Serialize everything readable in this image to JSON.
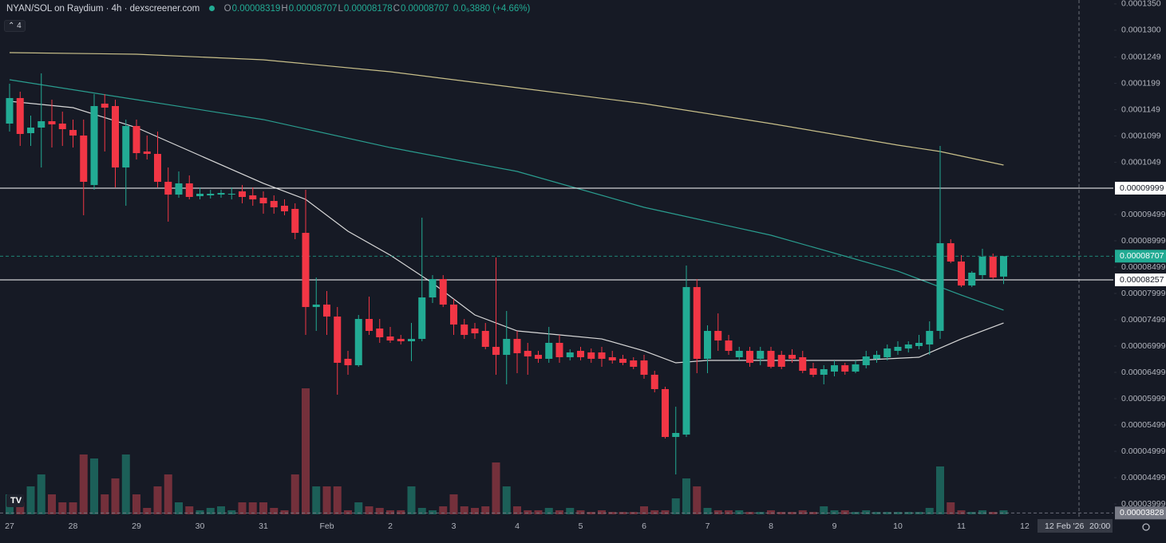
{
  "chart_data": {
    "type": "candlestick",
    "title": "NYAN/SOL on Raydium · 4h · dexscreener.com",
    "ohlc_legend": [
      {
        "label": "O",
        "value": 8.319e-05
      },
      {
        "label": "H",
        "value": 8.707e-05
      },
      {
        "label": "L",
        "value": 8.178e-05
      },
      {
        "label": "C",
        "value": 8.707e-05
      }
    ],
    "change": "0.0₅3880 (+4.66%)",
    "indicators_count": 4,
    "categories": [
      "27",
      null,
      null,
      null,
      null,
      null,
      "28",
      null,
      null,
      null,
      null,
      null,
      "29",
      null,
      null,
      null,
      null,
      null,
      "30",
      null,
      null,
      null,
      null,
      null,
      "31",
      null,
      null,
      null,
      null,
      null,
      "Feb",
      null,
      null,
      null,
      null,
      null,
      "2",
      null,
      null,
      null,
      null,
      null,
      "3",
      null,
      null,
      null,
      null,
      null,
      "4",
      null,
      null,
      null,
      null,
      null,
      "5",
      null,
      null,
      null,
      null,
      null,
      "6",
      null,
      null,
      null,
      null,
      null,
      "7",
      null,
      null,
      null,
      null,
      null,
      "8",
      null,
      null,
      null,
      null,
      null,
      "9",
      null,
      null,
      null,
      null,
      null,
      "10",
      null,
      null,
      null,
      null,
      null,
      "11",
      null,
      null,
      null,
      null,
      null,
      "12"
    ],
    "open": [
      0.00011226,
      0.00011711,
      0.00011044,
      0.0001115,
      0.00011271,
      0.00011226,
      0.00011105,
      0.00010999,
      0.00010059,
      0.00011605,
      0.00011559,
      0.00010392,
      0.0001118,
      0.00010696,
      0.0001065,
      0.0001012,
      9.877e-05,
      0.0001009,
      9.847e-05,
      9.862e-05,
      9.877e-05,
      9.877e-05,
      9.938e-05,
      9.862e-05,
      9.817e-05,
      9.756e-05,
      9.665e-05,
      9.605e-05,
      9.15e-05,
      7.741e-05,
      7.787e-05,
      7.56e-05,
      6.757e-05,
      6.635e-05,
      7.514e-05,
      7.332e-05,
      7.181e-05,
      7.135e-05,
      7.09e-05,
      7.135e-05,
      7.923e-05,
      8.272e-05,
      7.787e-05,
      7.408e-05,
      7.332e-05,
      7.287e-05,
      6.984e-05,
      6.832e-05,
      7.135e-05,
      6.908e-05,
      6.832e-05,
      6.757e-05,
      7.06e-05,
      6.787e-05,
      6.908e-05,
      6.878e-05,
      6.878e-05,
      6.787e-05,
      6.757e-05,
      6.726e-05,
      6.726e-05,
      6.454e-05,
      6.181e-05,
      5.272e-05,
      5.317e-05,
      8.12e-05,
      6.757e-05,
      7.287e-05,
      7.105e-05,
      6.787e-05,
      6.908e-05,
      6.757e-05,
      6.908e-05,
      6.832e-05,
      6.832e-05,
      6.787e-05,
      6.575e-05,
      6.454e-05,
      6.514e-05,
      6.635e-05,
      6.514e-05,
      6.635e-05,
      6.757e-05,
      6.787e-05,
      6.908e-05,
      6.953e-05,
      6.999e-05,
      7.029e-05,
      7.287e-05,
      8.953e-05,
      8.605e-05,
      8.15e-05,
      8.347e-05,
      8.696e-05,
      8.319e-05,
      null,
      null
    ],
    "high": [
      0.00011983,
      0.00011832,
      0.00011377,
      0.0001218,
      0.0001168,
      0.00011453,
      0.00011302,
      0.00011302,
      0.00011786,
      0.00011786,
      0.0001168,
      0.00011302,
      0.00011302,
      0.00010999,
      0.00011074,
      0.00010392,
      0.00010317,
      0.00010241,
      0.00010014,
      9.968e-05,
      9.968e-05,
      0.00010014,
      0.00010059,
      0.00010014,
      9.938e-05,
      9.862e-05,
      9.786e-05,
      9.711e-05,
      9.968e-05,
      8.302e-05,
      8.044e-05,
      7.741e-05,
      6.908e-05,
      7.59e-05,
      7.938e-05,
      7.514e-05,
      7.363e-05,
      7.211e-05,
      7.438e-05,
      9.438e-05,
      8.347e-05,
      8.347e-05,
      7.893e-05,
      7.514e-05,
      7.438e-05,
      7.438e-05,
      8.681e-05,
      7.666e-05,
      7.287e-05,
      7.06e-05,
      6.908e-05,
      7.363e-05,
      7.211e-05,
      6.938e-05,
      6.984e-05,
      6.953e-05,
      6.984e-05,
      6.908e-05,
      6.832e-05,
      6.787e-05,
      6.832e-05,
      6.529e-05,
      6.227e-05,
      5.847e-05,
      8.529e-05,
      8.272e-05,
      7.393e-05,
      7.62e-05,
      7.211e-05,
      6.984e-05,
      6.984e-05,
      6.984e-05,
      6.984e-05,
      6.908e-05,
      6.938e-05,
      6.908e-05,
      6.681e-05,
      6.635e-05,
      6.726e-05,
      6.681e-05,
      6.726e-05,
      6.908e-05,
      6.908e-05,
      7.029e-05,
      7.09e-05,
      7.09e-05,
      7.211e-05,
      7.469e-05,
      0.00010802,
      9.029e-05,
      8.726e-05,
      8.423e-05,
      8.847e-05,
      8.756e-05,
      8.707e-05,
      null,
      null
    ],
    "low": [
      0.00011074,
      0.00010802,
      0.00010802,
      0.00010392,
      0.00010771,
      0.00010802,
      0.00010771,
      9.484e-05,
      9.968e-05,
      0.00010696,
      0.00010014,
      9.665e-05,
      0.00010544,
      0.00010544,
      0.00010014,
      9.363e-05,
      9.817e-05,
      9.786e-05,
      9.786e-05,
      9.802e-05,
      9.817e-05,
      9.786e-05,
      9.711e-05,
      9.665e-05,
      9.514e-05,
      9.514e-05,
      9.484e-05,
      9.029e-05,
      7.211e-05,
      7.287e-05,
      7.211e-05,
      6.075e-05,
      6.454e-05,
      6.605e-05,
      7.211e-05,
      7.06e-05,
      7.06e-05,
      7.029e-05,
      6.711e-05,
      7.09e-05,
      7.817e-05,
      7.741e-05,
      7.211e-05,
      7.135e-05,
      7.135e-05,
      6.938e-05,
      6.454e-05,
      6.272e-05,
      6.484e-05,
      6.454e-05,
      6.681e-05,
      6.681e-05,
      6.681e-05,
      6.726e-05,
      6.726e-05,
      6.681e-05,
      6.605e-05,
      6.666e-05,
      6.635e-05,
      6.56e-05,
      6.378e-05,
      6.12e-05,
      5.241e-05,
      4.56e-05,
      5.272e-05,
      6.484e-05,
      6.484e-05,
      6.908e-05,
      6.832e-05,
      6.726e-05,
      6.605e-05,
      6.635e-05,
      6.575e-05,
      6.56e-05,
      6.681e-05,
      6.484e-05,
      6.409e-05,
      6.272e-05,
      6.424e-05,
      6.454e-05,
      6.484e-05,
      6.575e-05,
      6.681e-05,
      6.726e-05,
      6.832e-05,
      6.878e-05,
      6.938e-05,
      6.832e-05,
      7.135e-05,
      8.575e-05,
      8.12e-05,
      8.12e-05,
      8.272e-05,
      8.272e-05,
      8.178e-05,
      null,
      null
    ],
    "close": [
      0.00011711,
      0.00011029,
      0.0001115,
      0.00011271,
      0.00011211,
      0.0001112,
      0.00010999,
      0.0001012,
      0.00011559,
      0.00011529,
      0.00010392,
      0.0001118,
      0.00010665,
      0.0001065,
      0.0001012,
      9.877e-05,
      0.0001009,
      9.832e-05,
      9.893e-05,
      9.893e-05,
      9.908e-05,
      9.893e-05,
      9.832e-05,
      9.786e-05,
      9.711e-05,
      9.635e-05,
      9.559e-05,
      9.15e-05,
      7.741e-05,
      7.787e-05,
      7.56e-05,
      6.681e-05,
      6.635e-05,
      7.514e-05,
      7.287e-05,
      7.166e-05,
      7.105e-05,
      7.09e-05,
      7.135e-05,
      7.923e-05,
      8.272e-05,
      7.787e-05,
      7.408e-05,
      7.211e-05,
      7.241e-05,
      6.984e-05,
      6.832e-05,
      7.135e-05,
      6.863e-05,
      6.802e-05,
      6.757e-05,
      7.06e-05,
      6.787e-05,
      6.878e-05,
      6.787e-05,
      6.757e-05,
      6.757e-05,
      6.726e-05,
      6.681e-05,
      6.605e-05,
      6.454e-05,
      6.181e-05,
      5.272e-05,
      5.348e-05,
      8.12e-05,
      6.757e-05,
      7.287e-05,
      7.105e-05,
      6.908e-05,
      6.908e-05,
      6.681e-05,
      6.908e-05,
      6.605e-05,
      6.605e-05,
      6.757e-05,
      6.529e-05,
      6.454e-05,
      6.56e-05,
      6.635e-05,
      6.514e-05,
      6.651e-05,
      6.802e-05,
      6.832e-05,
      6.953e-05,
      6.984e-05,
      7.029e-05,
      7.06e-05,
      7.287e-05,
      8.953e-05,
      8.605e-05,
      8.15e-05,
      8.393e-05,
      8.696e-05,
      8.302e-05,
      8.707e-05,
      null,
      null
    ],
    "volume": [
      25,
      15,
      35,
      50,
      25,
      15,
      15,
      75,
      70,
      25,
      45,
      75,
      25,
      8,
      35,
      50,
      15,
      10,
      5,
      8,
      10,
      5,
      15,
      15,
      15,
      8,
      5,
      50,
      158,
      35,
      35,
      35,
      5,
      15,
      10,
      8,
      5,
      5,
      35,
      8,
      5,
      10,
      25,
      10,
      8,
      10,
      65,
      35,
      10,
      5,
      5,
      8,
      5,
      8,
      5,
      3,
      5,
      3,
      3,
      3,
      10,
      5,
      5,
      20,
      45,
      35,
      8,
      5,
      5,
      5,
      3,
      3,
      5,
      3,
      3,
      5,
      3,
      10,
      5,
      5,
      3,
      5,
      3,
      3,
      3,
      3,
      3,
      8,
      60,
      15,
      5,
      3,
      5,
      3,
      5,
      null,
      null
    ],
    "up_color": "#22ab94",
    "down_color": "#f23645",
    "volume_up_color": "#1c5f58",
    "volume_down_color": "#74303b",
    "moving_averages": [
      {
        "color": "#c9c08a",
        "x": [
          0,
          12,
          24,
          36,
          48,
          60,
          72,
          84,
          88,
          94
        ],
        "values": [
          0.00012574,
          0.00012544,
          0.00012438,
          0.00012211,
          0.00011908,
          0.00011605,
          0.00011226,
          0.00010817,
          0.00010696,
          0.00010438
        ]
      },
      {
        "color": "#2a9d8f",
        "x": [
          0,
          12,
          24,
          36,
          48,
          60,
          72,
          84,
          90,
          94
        ],
        "values": [
          0.00012059,
          0.0001168,
          0.00011302,
          0.00010771,
          0.00010317,
          9.635e-05,
          9.105e-05,
          8.423e-05,
          7.968e-05,
          7.681e-05
        ]
      },
      {
        "color": "#d8d8d8",
        "x": [
          0,
          6,
          12,
          18,
          24,
          28,
          32,
          36,
          40,
          44,
          48,
          52,
          56,
          60,
          63,
          66,
          72,
          80,
          86,
          90,
          94
        ],
        "values": [
          0.0001165,
          0.00011529,
          0.0001115,
          0.0001062,
          0.0001009,
          9.786e-05,
          9.181e-05,
          8.726e-05,
          8.196e-05,
          7.59e-05,
          7.287e-05,
          7.211e-05,
          7.135e-05,
          6.908e-05,
          6.681e-05,
          6.726e-05,
          6.726e-05,
          6.726e-05,
          6.787e-05,
          7.135e-05,
          7.438e-05
        ]
      }
    ],
    "ylim": [
      3.727e-05,
      0.00013574
    ],
    "yticks": [
      {
        "value": 0.000135,
        "label": "0.0001350"
      },
      {
        "value": 0.00013,
        "label": "0.0001300"
      },
      0.0001249,
      0.0001199,
      0.0001149,
      0.0001099,
      0.0001049,
      9.499e-05,
      8.999e-05,
      8.499e-05,
      7.999e-05,
      7.499e-05,
      6.999e-05,
      6.499e-05,
      5.999e-05,
      5.499e-05,
      4.999e-05,
      4.499e-05,
      3.999e-05
    ],
    "grid": false,
    "horizontal_lines": [
      {
        "value": 9.999e-05,
        "color": "#ffffff"
      },
      {
        "value": 8.257e-05,
        "color": "#ffffff"
      }
    ],
    "last_price": {
      "value": 8.707e-05,
      "color": "#22ab94"
    },
    "low_marker": {
      "value": 3.828e-05,
      "color": "#787b86"
    },
    "crosshair_label": [
      "12 Feb '26",
      "20:00"
    ]
  }
}
